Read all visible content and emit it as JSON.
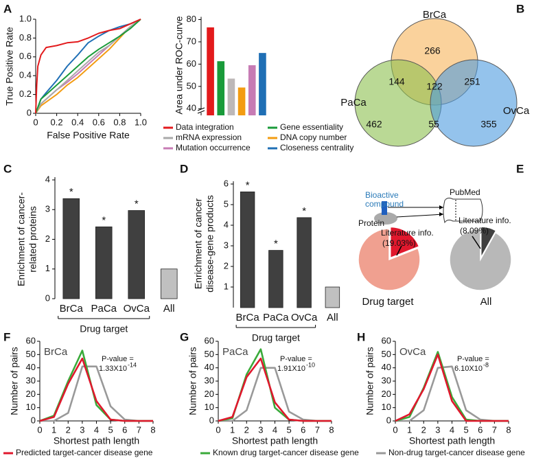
{
  "chart_data": [
    {
      "type": "line",
      "panel": "A",
      "xlabel": "False Positive Rate",
      "ylabel": "True Positive Rate",
      "xlim": [
        0,
        1
      ],
      "ylim": [
        0,
        1
      ],
      "xticks": [
        0,
        0.2,
        0.4,
        0.6,
        0.8,
        {
          "value": 1,
          "label": "1.0"
        }
      ],
      "yticks": [
        0,
        0.2,
        0.4,
        0.6,
        0.8,
        {
          "value": 1,
          "label": "1.0"
        }
      ],
      "legend": "below",
      "series": [
        {
          "name": "Data integration",
          "color": "#e31a1c",
          "x": [
            0,
            0.01,
            0.02,
            0.05,
            0.1,
            0.2,
            0.3,
            0.4,
            0.5,
            0.6,
            0.7,
            0.8,
            0.9,
            1
          ],
          "values": [
            0,
            0.3,
            0.5,
            0.62,
            0.7,
            0.72,
            0.75,
            0.76,
            0.8,
            0.85,
            0.88,
            0.9,
            0.95,
            1
          ]
        },
        {
          "name": "Gene essentiality",
          "color": "#1a9b3a",
          "x": [
            0,
            0.05,
            0.1,
            0.2,
            0.3,
            0.4,
            0.5,
            0.6,
            0.7,
            0.8,
            0.9,
            1
          ],
          "values": [
            0,
            0.15,
            0.2,
            0.3,
            0.4,
            0.5,
            0.6,
            0.68,
            0.75,
            0.82,
            0.9,
            1
          ]
        },
        {
          "name": "mRNA expression",
          "color": "#a9a9a9",
          "x": [
            0,
            0.05,
            0.1,
            0.2,
            0.3,
            0.4,
            0.5,
            0.6,
            0.7,
            0.8,
            0.9,
            1
          ],
          "values": [
            0,
            0.1,
            0.15,
            0.25,
            0.35,
            0.45,
            0.55,
            0.65,
            0.72,
            0.82,
            0.92,
            1
          ]
        },
        {
          "name": "DNA copy number",
          "color": "#f39c12",
          "x": [
            0,
            0.05,
            0.1,
            0.2,
            0.3,
            0.4,
            0.5,
            0.6,
            0.7,
            0.8,
            0.9,
            1
          ],
          "values": [
            0,
            0.08,
            0.12,
            0.2,
            0.3,
            0.38,
            0.48,
            0.58,
            0.68,
            0.8,
            0.92,
            1
          ]
        },
        {
          "name": "Mutation occurrence",
          "color": "#c77bb4",
          "x": [
            0,
            0.05,
            0.1,
            0.2,
            0.3,
            0.4,
            0.5,
            0.6,
            0.7,
            0.8,
            0.9,
            1
          ],
          "values": [
            0,
            0.1,
            0.15,
            0.25,
            0.33,
            0.42,
            0.52,
            0.62,
            0.72,
            0.82,
            0.92,
            1
          ]
        },
        {
          "name": "Closeness centrality",
          "color": "#1f6fb5",
          "x": [
            0,
            0.05,
            0.1,
            0.2,
            0.3,
            0.4,
            0.5,
            0.6,
            0.7,
            0.8,
            0.9,
            1
          ],
          "values": [
            0,
            0.15,
            0.22,
            0.35,
            0.5,
            0.62,
            0.75,
            0.82,
            0.88,
            0.92,
            0.95,
            1
          ]
        }
      ]
    },
    {
      "type": "bar",
      "ylabel": "Area under ROC-curve",
      "values": [
        76.5,
        61.3,
        53.5,
        49.5,
        59.5,
        65
      ],
      "colors": [
        "#e31a1c",
        "#1a9b3a",
        "#bdb8b8",
        "#f39c12",
        "#c77bb4",
        "#1f6fb5"
      ],
      "ylim": [
        37,
        82
      ],
      "yticks": [
        40,
        50,
        60,
        70,
        80
      ],
      "axis_break": true
    },
    {
      "type": "venn",
      "panel": "B",
      "sets": [
        {
          "name": "BrCa",
          "color": "#f7b45a"
        },
        {
          "name": "PaCa",
          "color": "#8cbf4e"
        },
        {
          "name": "OvCa",
          "color": "#4d9be0"
        }
      ],
      "regions": [
        {
          "sets": [
            "BrCa"
          ],
          "value": 266
        },
        {
          "sets": [
            "BrCa",
            "PaCa"
          ],
          "value": 144
        },
        {
          "sets": [
            "BrCa",
            "OvCa"
          ],
          "value": 251
        },
        {
          "sets": [
            "BrCa",
            "PaCa",
            "OvCa"
          ],
          "value": 122
        },
        {
          "sets": [
            "PaCa"
          ],
          "value": 462
        },
        {
          "sets": [
            "PaCa",
            "OvCa"
          ],
          "value": 55
        },
        {
          "sets": [
            "OvCa"
          ],
          "value": 355
        }
      ]
    },
    {
      "type": "bar",
      "panel": "C",
      "ylabel": [
        "Enrichment of cancer-",
        "related proteins"
      ],
      "categories": [
        "BrCa",
        "PaCa",
        "OvCa",
        "All"
      ],
      "values": [
        3.37,
        2.42,
        2.97,
        1.0
      ],
      "colors": [
        "#404040",
        "#404040",
        "#404040",
        "#c0c0c0"
      ],
      "annotations": [
        "*",
        "*",
        "*",
        null
      ],
      "group_label": "Drug target",
      "ylim": [
        0,
        4
      ],
      "yticks": [
        0,
        1,
        2,
        3,
        4
      ]
    },
    {
      "type": "bar",
      "panel": "D",
      "ylabel": [
        "Enrichment of cancer",
        "disease-gene products"
      ],
      "categories": [
        "BrCa",
        "PaCa",
        "OvCa",
        "All"
      ],
      "values": [
        5.62,
        2.78,
        4.37,
        1.0
      ],
      "colors": [
        "#404040",
        "#404040",
        "#404040",
        "#c0c0c0"
      ],
      "annotations": [
        "*",
        "*",
        "*",
        null
      ],
      "group_label": "Drug target",
      "ylim": [
        0,
        6.2
      ],
      "yticks": [
        1,
        2,
        3,
        4,
        5,
        6
      ]
    },
    {
      "type": "pie",
      "panel": "E",
      "label": "Drug target",
      "slice_label": "Literature info.",
      "values": [
        19.03,
        80.97
      ],
      "value_labels": [
        "(19.03%)",
        null
      ],
      "colors": [
        "#e0182d",
        "#f0a090"
      ]
    },
    {
      "type": "pie",
      "label": "All",
      "slice_label": "Literature info.",
      "values": [
        8.09,
        91.91
      ],
      "value_labels": [
        "(8.09%)",
        null
      ],
      "colors": [
        "#404040",
        "#b8b8b8"
      ]
    },
    {
      "type": "line",
      "panel": "F",
      "title": "BrCa",
      "xlabel": "Shortest path length",
      "ylabel": "Number of pairs",
      "annotation": [
        "P-value =",
        "1.33X10"
      ],
      "annotation_exponent": "-14",
      "x": [
        0,
        1,
        2,
        3,
        4,
        5,
        6,
        7,
        8
      ],
      "xlim": [
        0,
        8
      ],
      "ylim": [
        0,
        60
      ],
      "xticks": [
        0,
        1,
        2,
        3,
        4,
        5,
        6,
        7,
        8
      ],
      "yticks": [
        0,
        10,
        20,
        30,
        40,
        50,
        60
      ],
      "legend": "bottom",
      "series": [
        {
          "name": "Predicted target-cancer disease gene",
          "color": "#e0182d",
          "values": [
            0,
            3,
            28,
            47,
            15,
            1,
            0,
            0,
            0
          ]
        },
        {
          "name": "Known drug target-cancer disease gene",
          "color": "#3aaa3a",
          "values": [
            0,
            4,
            30,
            53,
            12,
            1,
            0,
            0,
            0
          ]
        },
        {
          "name": "Non-drug target-cancer disease gene",
          "color": "#999999",
          "values": [
            0,
            0,
            6,
            41,
            41,
            11,
            1,
            0,
            0
          ]
        }
      ]
    },
    {
      "type": "line",
      "panel": "G",
      "title": "PaCa",
      "xlabel": "Shortest path length",
      "ylabel": "Number of pairs",
      "annotation": [
        "P-value =",
        "1.91X10"
      ],
      "annotation_exponent": "-10",
      "x": [
        0,
        1,
        2,
        3,
        4,
        5,
        6,
        7,
        8
      ],
      "xlim": [
        0,
        8
      ],
      "ylim": [
        0,
        60
      ],
      "xticks": [
        0,
        1,
        2,
        3,
        4,
        5,
        6,
        7,
        8
      ],
      "yticks": [
        0,
        10,
        20,
        30,
        40,
        50,
        60
      ],
      "series": [
        {
          "color": "#e0182d",
          "values": [
            0,
            3,
            33,
            47,
            14,
            1,
            0,
            0,
            0
          ]
        },
        {
          "color": "#3aaa3a",
          "values": [
            0,
            2,
            35,
            54,
            10,
            1,
            0,
            0,
            0
          ]
        },
        {
          "color": "#999999",
          "values": [
            0,
            0,
            8,
            40,
            40,
            7,
            1,
            0,
            0
          ]
        }
      ]
    },
    {
      "type": "line",
      "panel": "H",
      "title": "OvCa",
      "xlabel": "Shortest path length",
      "ylabel": "Number of pairs",
      "annotation": [
        "P-value =",
        "6.10X10"
      ],
      "annotation_exponent": "-8",
      "x": [
        0,
        1,
        2,
        3,
        4,
        5,
        6,
        7,
        8
      ],
      "xlim": [
        0,
        8
      ],
      "ylim": [
        0,
        60
      ],
      "xticks": [
        0,
        1,
        2,
        3,
        4,
        5,
        6,
        7,
        8
      ],
      "yticks": [
        0,
        10,
        20,
        30,
        40,
        50,
        60
      ],
      "series": [
        {
          "color": "#e0182d",
          "values": [
            0,
            5,
            24,
            50,
            15,
            0,
            0,
            0,
            0
          ]
        },
        {
          "color": "#3aaa3a",
          "values": [
            0,
            3,
            25,
            52,
            18,
            1,
            0,
            0,
            0
          ]
        },
        {
          "color": "#999999",
          "values": [
            0,
            0,
            8,
            40,
            41,
            8,
            1,
            0,
            0
          ]
        }
      ]
    }
  ],
  "diagram": {
    "compound": [
      "Bioactive",
      "compound"
    ],
    "database": "PubMed",
    "target": "Protein"
  }
}
